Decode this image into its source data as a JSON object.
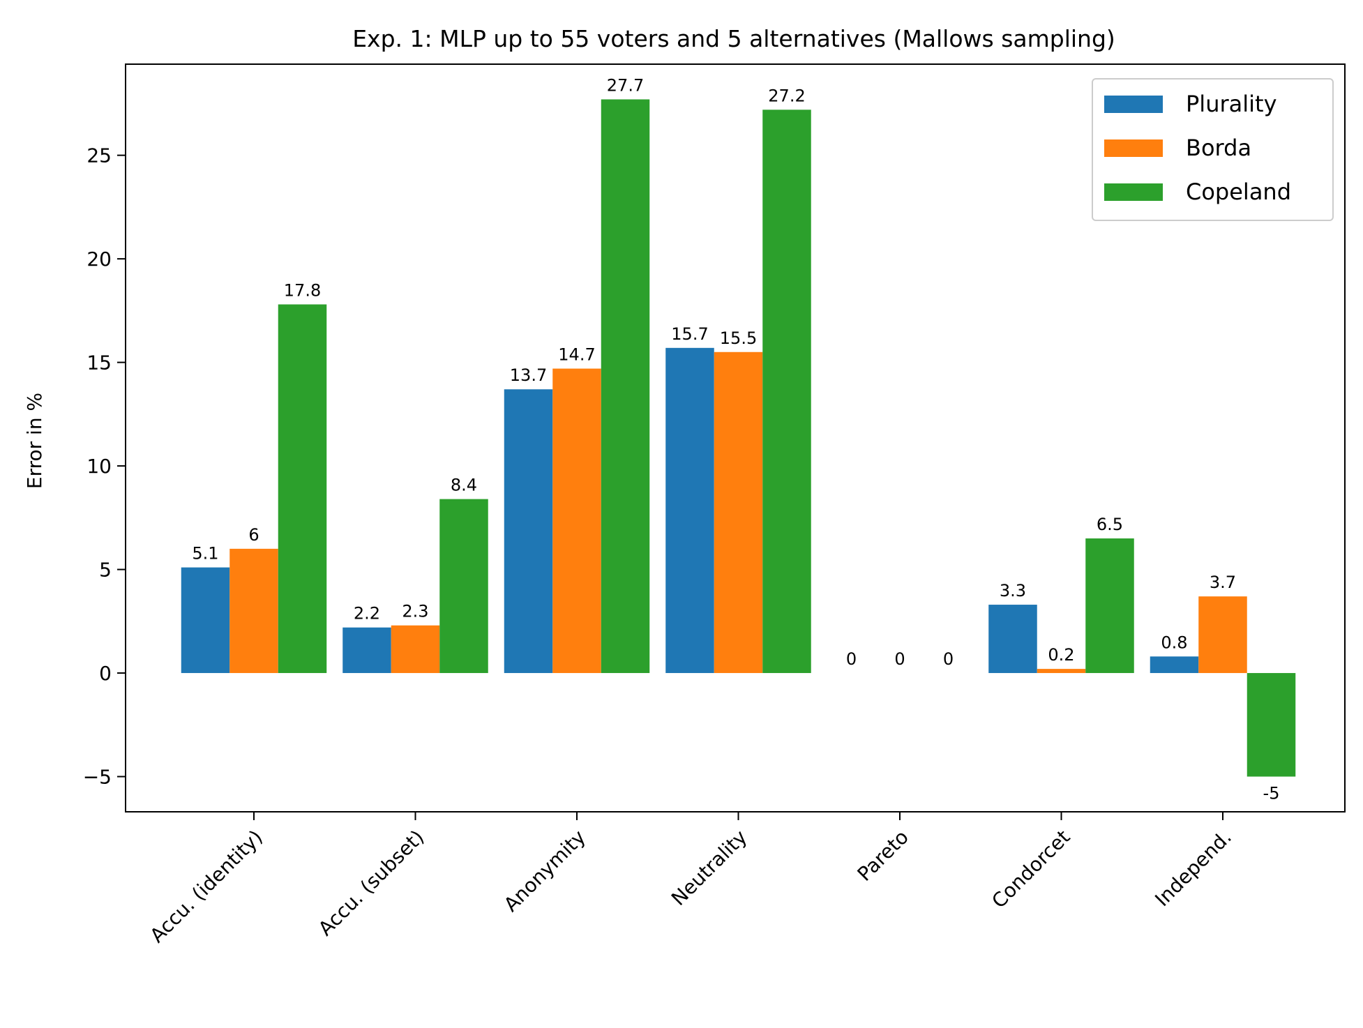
{
  "chart_data": {
    "type": "bar",
    "title": "Exp. 1: MLP up to 55 voters and 5 alternatives (Mallows sampling)",
    "xlabel": "",
    "ylabel": "Error in %",
    "categories": [
      "Accu. (identity)",
      "Accu. (subset)",
      "Anonymity",
      "Neutrality",
      "Pareto",
      "Condorcet",
      "Independ."
    ],
    "series": [
      {
        "name": "Plurality",
        "color": "#1f77b4",
        "values": [
          5.1,
          2.2,
          13.7,
          15.7,
          0,
          3.3,
          0.8
        ]
      },
      {
        "name": "Borda",
        "color": "#ff7f0e",
        "values": [
          6,
          2.3,
          14.7,
          15.5,
          0,
          0.2,
          3.7
        ]
      },
      {
        "name": "Copeland",
        "color": "#2ca02c",
        "values": [
          17.8,
          8.4,
          27.7,
          27.2,
          0,
          6.5,
          -5
        ]
      }
    ],
    "ylim": [
      -6.7,
      29.4
    ],
    "yticks": [
      -5,
      0,
      5,
      10,
      15,
      20,
      25
    ],
    "ytick_labels": [
      "−5",
      "0",
      "5",
      "10",
      "15",
      "20",
      "25"
    ],
    "legend": "top-right",
    "grid": false
  }
}
